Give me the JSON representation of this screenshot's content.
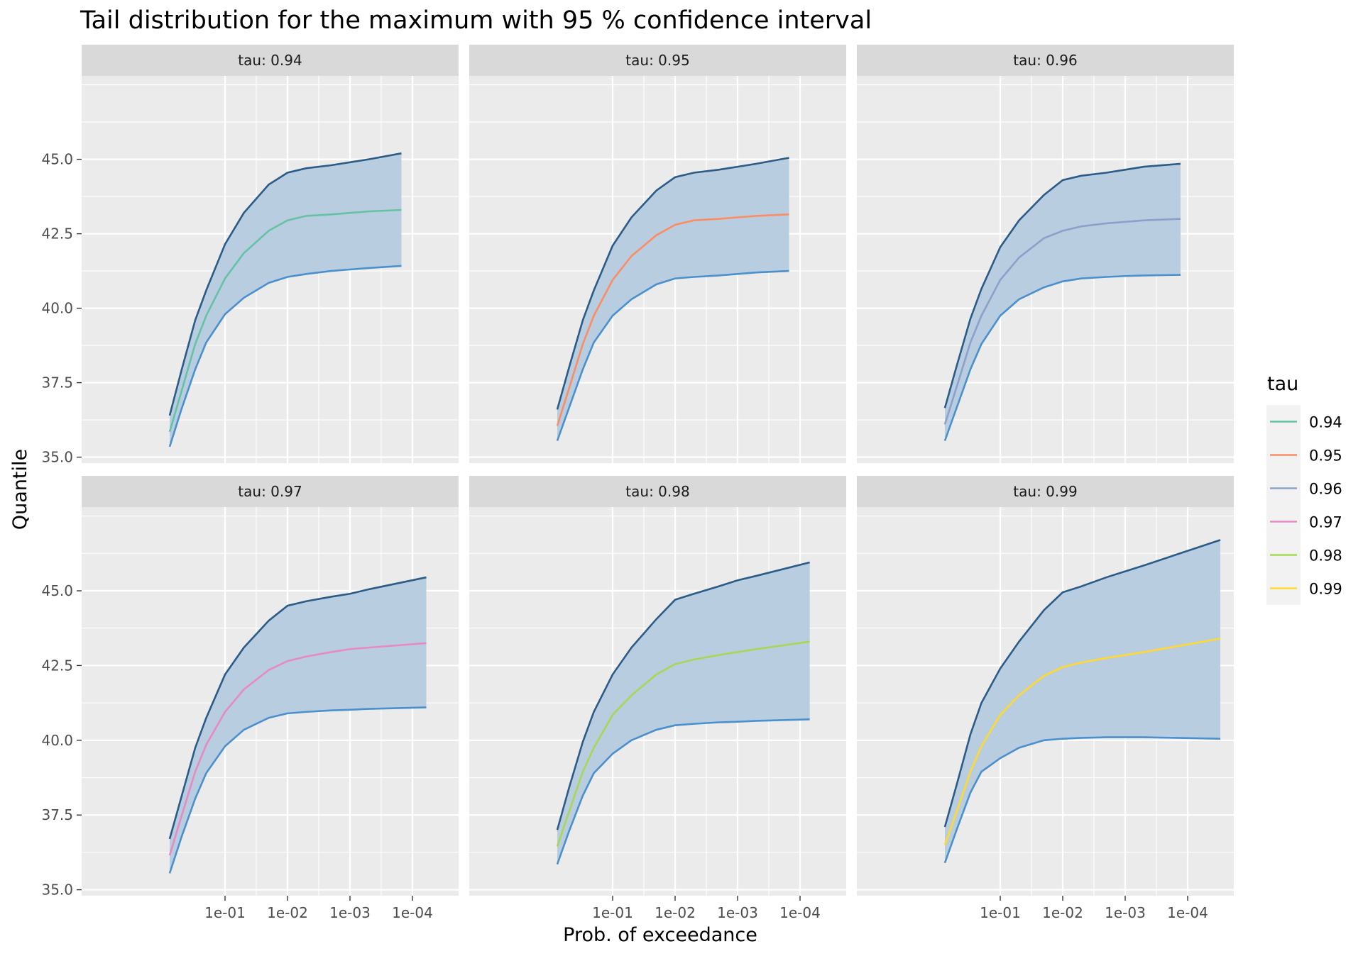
{
  "chart_data": {
    "type": "line",
    "title": "Tail distribution for the maximum with 95 % confidence interval",
    "xlabel": "Prob. of exceedance",
    "ylabel": "Quantile",
    "x_scale": "reverse-log10",
    "x_tick_values": [
      0.1,
      0.01,
      0.001,
      0.0001
    ],
    "x_tick_labels": [
      "1e-01",
      "1e-02",
      "1e-03",
      "1e-04"
    ],
    "ylim": [
      34.8,
      47.8
    ],
    "y_ticks": [
      35.0,
      37.5,
      40.0,
      42.5,
      45.0
    ],
    "y_tick_labels": [
      "35.0",
      "37.5",
      "40.0",
      "42.5",
      "45.0"
    ],
    "grid": true,
    "ribbon_color": "#b8cde0",
    "upper_color": "#2b5b87",
    "lower_color": "#4a8fce",
    "legend": {
      "title": "tau",
      "position": "right",
      "entries": [
        {
          "label": "0.94",
          "color": "#66c2a5"
        },
        {
          "label": "0.95",
          "color": "#fc8d62"
        },
        {
          "label": "0.96",
          "color": "#8da0cb"
        },
        {
          "label": "0.97",
          "color": "#e78ac3"
        },
        {
          "label": "0.98",
          "color": "#a6d854"
        },
        {
          "label": "0.99",
          "color": "#ffd92f"
        }
      ]
    },
    "panels": [
      {
        "strip": "tau: 0.94",
        "color": "#66c2a5",
        "x": [
          0.77,
          0.5,
          0.3,
          0.2,
          0.1,
          0.05,
          0.02,
          0.01,
          0.005,
          0.002,
          0.001,
          0.0005,
          0.00015
        ],
        "estimate": [
          35.85,
          37.2,
          38.8,
          39.75,
          41.0,
          41.85,
          42.6,
          42.95,
          43.1,
          43.15,
          43.2,
          43.25,
          43.3
        ],
        "upper": [
          36.4,
          37.9,
          39.6,
          40.6,
          42.15,
          43.2,
          44.15,
          44.55,
          44.7,
          44.8,
          44.9,
          45.0,
          45.2
        ],
        "lower": [
          35.35,
          36.6,
          37.95,
          38.85,
          39.8,
          40.35,
          40.85,
          41.05,
          41.15,
          41.25,
          41.3,
          41.35,
          41.42
        ]
      },
      {
        "strip": "tau: 0.95",
        "color": "#fc8d62",
        "x": [
          0.77,
          0.5,
          0.3,
          0.2,
          0.1,
          0.05,
          0.02,
          0.01,
          0.005,
          0.002,
          0.001,
          0.0005,
          0.00015
        ],
        "estimate": [
          36.05,
          37.3,
          38.8,
          39.75,
          40.95,
          41.75,
          42.45,
          42.8,
          42.95,
          43.0,
          43.05,
          43.1,
          43.15
        ],
        "upper": [
          36.6,
          38.0,
          39.6,
          40.6,
          42.1,
          43.05,
          43.95,
          44.4,
          44.55,
          44.65,
          44.75,
          44.85,
          45.05
        ],
        "lower": [
          35.55,
          36.65,
          37.95,
          38.85,
          39.75,
          40.3,
          40.8,
          41.0,
          41.05,
          41.1,
          41.15,
          41.2,
          41.25
        ]
      },
      {
        "strip": "tau: 0.96",
        "color": "#8da0cb",
        "x": [
          0.77,
          0.5,
          0.3,
          0.2,
          0.1,
          0.05,
          0.02,
          0.01,
          0.005,
          0.002,
          0.001,
          0.0005,
          0.00013
        ],
        "estimate": [
          36.1,
          37.35,
          38.85,
          39.75,
          40.95,
          41.7,
          42.35,
          42.6,
          42.75,
          42.85,
          42.9,
          42.95,
          43.0
        ],
        "upper": [
          36.65,
          38.05,
          39.65,
          40.65,
          42.05,
          42.95,
          43.8,
          44.3,
          44.45,
          44.55,
          44.65,
          44.75,
          44.85
        ],
        "lower": [
          35.55,
          36.65,
          37.95,
          38.8,
          39.75,
          40.3,
          40.7,
          40.9,
          41.0,
          41.05,
          41.08,
          41.1,
          41.12
        ]
      },
      {
        "strip": "tau: 0.97",
        "color": "#e78ac3",
        "x": [
          0.77,
          0.5,
          0.3,
          0.2,
          0.1,
          0.05,
          0.02,
          0.01,
          0.005,
          0.002,
          0.001,
          0.0005,
          6e-05
        ],
        "estimate": [
          36.15,
          37.45,
          38.95,
          39.85,
          40.95,
          41.7,
          42.35,
          42.65,
          42.8,
          42.95,
          43.05,
          43.1,
          43.25
        ],
        "upper": [
          36.7,
          38.1,
          39.75,
          40.75,
          42.2,
          43.1,
          44.0,
          44.5,
          44.65,
          44.8,
          44.9,
          45.05,
          45.45
        ],
        "lower": [
          35.55,
          36.75,
          38.05,
          38.9,
          39.8,
          40.35,
          40.75,
          40.9,
          40.95,
          41.0,
          41.02,
          41.05,
          41.1
        ]
      },
      {
        "strip": "tau: 0.98",
        "color": "#a6d854",
        "x": [
          0.77,
          0.5,
          0.3,
          0.2,
          0.1,
          0.05,
          0.02,
          0.01,
          0.005,
          0.002,
          0.001,
          0.0005,
          7e-05
        ],
        "estimate": [
          36.45,
          37.6,
          38.95,
          39.75,
          40.85,
          41.5,
          42.2,
          42.55,
          42.7,
          42.85,
          42.95,
          43.05,
          43.3
        ],
        "upper": [
          37.0,
          38.4,
          39.95,
          40.95,
          42.2,
          43.1,
          44.05,
          44.7,
          44.9,
          45.15,
          45.35,
          45.5,
          45.95
        ],
        "lower": [
          35.85,
          36.95,
          38.15,
          38.9,
          39.55,
          40.0,
          40.35,
          40.5,
          40.55,
          40.6,
          40.62,
          40.65,
          40.7
        ]
      },
      {
        "strip": "tau: 0.99",
        "color": "#ffd92f",
        "x": [
          0.77,
          0.5,
          0.3,
          0.2,
          0.1,
          0.05,
          0.02,
          0.01,
          0.005,
          0.002,
          0.001,
          0.0005,
          3e-05
        ],
        "estimate": [
          36.5,
          37.6,
          38.95,
          39.8,
          40.85,
          41.5,
          42.15,
          42.45,
          42.6,
          42.75,
          42.85,
          42.95,
          43.4
        ],
        "upper": [
          37.1,
          38.5,
          40.2,
          41.25,
          42.4,
          43.3,
          44.35,
          44.95,
          45.15,
          45.45,
          45.65,
          45.85,
          46.7
        ],
        "lower": [
          35.9,
          37.0,
          38.25,
          38.95,
          39.4,
          39.75,
          40.0,
          40.05,
          40.08,
          40.1,
          40.1,
          40.1,
          40.05
        ]
      }
    ]
  }
}
